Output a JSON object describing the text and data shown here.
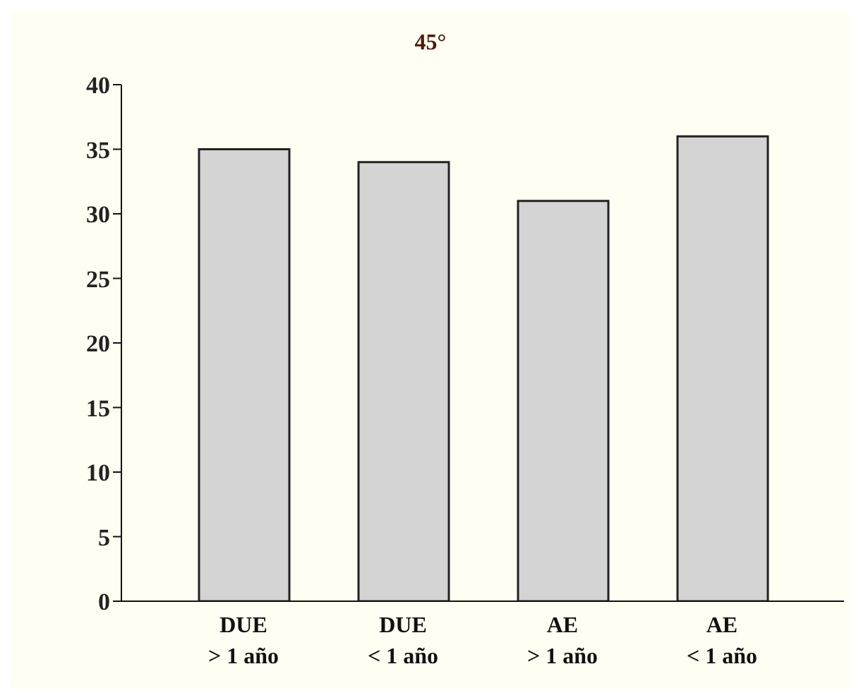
{
  "chart_data": {
    "type": "bar",
    "title": "45°",
    "categories": [
      "DUE\n> 1 año",
      "DUE\n< 1 año",
      "AE\n> 1 año",
      "AE\n< 1 año"
    ],
    "values": [
      35,
      34,
      31,
      36
    ],
    "color": "#d4d4d4",
    "ylim": [
      0,
      40
    ],
    "yticks": [
      0,
      5,
      10,
      15,
      20,
      25,
      30,
      35,
      40
    ],
    "grid": false
  }
}
